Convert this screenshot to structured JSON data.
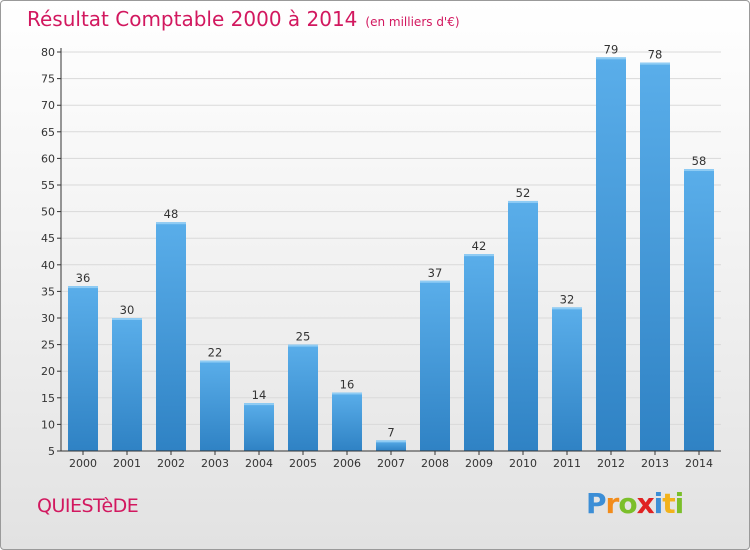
{
  "title": "Résultat Comptable 2000 à 2014",
  "subtitle": "(en milliers d'€)",
  "commune": "QUIESTèDE",
  "brand": {
    "letters": [
      "P",
      "r",
      "o",
      "x",
      "i",
      "t",
      "i"
    ],
    "colors": [
      "#3c8ed6",
      "#f28c1b",
      "#7bbf2a",
      "#e02222",
      "#3c8ed6",
      "#f2b21b",
      "#7bbf2a"
    ]
  },
  "colors": {
    "bar_light": "#5aaeea",
    "bar_dark": "#2f82c4",
    "title": "#d2185f",
    "grid": "#d9d9d9",
    "axis": "#333333"
  },
  "chart_data": {
    "type": "bar",
    "categories": [
      "2000",
      "2001",
      "2002",
      "2003",
      "2004",
      "2005",
      "2006",
      "2007",
      "2008",
      "2009",
      "2010",
      "2011",
      "2012",
      "2013",
      "2014"
    ],
    "values": [
      36,
      30,
      48,
      22,
      14,
      25,
      16,
      7,
      37,
      42,
      52,
      32,
      79,
      78,
      58
    ],
    "ylim": [
      5,
      80
    ],
    "yticks": [
      5,
      10,
      15,
      20,
      25,
      30,
      35,
      40,
      45,
      50,
      55,
      60,
      65,
      70,
      75,
      80
    ],
    "grid": true,
    "data_labels": true
  }
}
